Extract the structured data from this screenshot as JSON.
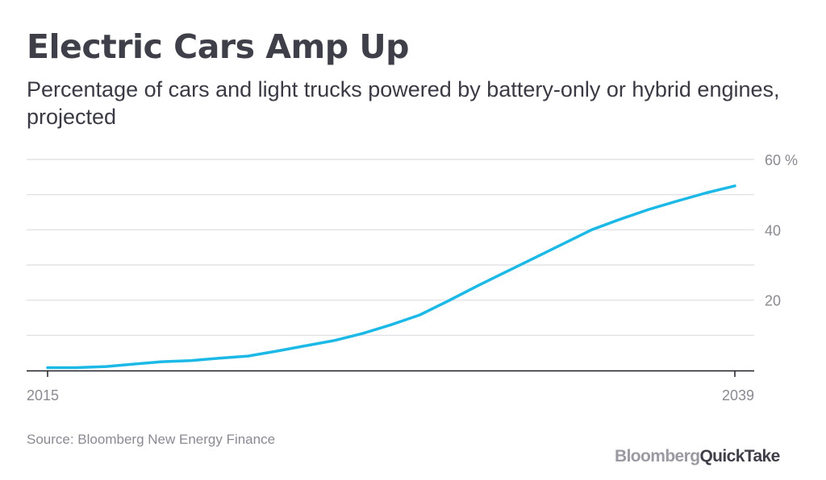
{
  "header": {
    "title": "Electric Cars Amp Up",
    "subtitle": "Percentage of cars and light trucks powered by battery-only or hybrid engines, projected"
  },
  "footer": {
    "source": "Source: Bloomberg New Energy Finance",
    "logo_part1": "Bloomberg",
    "logo_part2": "QuickTake"
  },
  "colors": {
    "line": "#1cb9e6",
    "grid": "#dedee2",
    "axis": "#1f1f27",
    "tick_text": "#8a8a92"
  },
  "chart_data": {
    "type": "line",
    "title": "Electric Cars Amp Up",
    "subtitle": "Percentage of cars and light trucks powered by battery-only or hybrid engines, projected",
    "xlabel": "",
    "ylabel": "",
    "xlim": [
      2015,
      2039
    ],
    "ylim": [
      0,
      60
    ],
    "x_tick_labels": [
      "2015",
      "2039"
    ],
    "y_ticks": [
      {
        "value": 60,
        "label": "60 %"
      },
      {
        "value": 40,
        "label": "40"
      },
      {
        "value": 20,
        "label": "20"
      }
    ],
    "gridlines": [
      10,
      20,
      30,
      40,
      50,
      60
    ],
    "grid": true,
    "y_axis_side": "right",
    "legend": "none",
    "series": [
      {
        "x": [
          2015,
          2016,
          2017,
          2018,
          2019,
          2020,
          2021,
          2022,
          2023,
          2024,
          2025,
          2026,
          2027,
          2028,
          2029,
          2030,
          2031,
          2032,
          2033,
          2034,
          2035,
          2036,
          2037,
          2038,
          2039
        ],
        "values": [
          0.8,
          0.8,
          1.1,
          1.8,
          2.5,
          2.8,
          3.5,
          4.1,
          5.5,
          7.0,
          8.5,
          10.5,
          13.0,
          15.8,
          19.8,
          24.0,
          28.0,
          32.0,
          36.0,
          40.0,
          43.0,
          45.8,
          48.2,
          50.5,
          52.5
        ]
      }
    ]
  }
}
